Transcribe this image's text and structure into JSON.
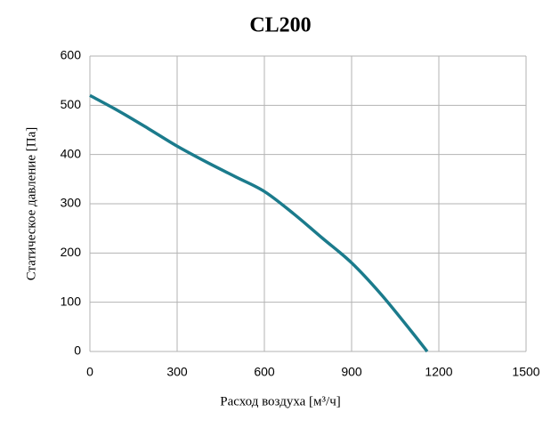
{
  "chart_data": {
    "type": "line",
    "title": "CL200",
    "x_label": "Расход воздуха [м³/ч]",
    "y_label": "Статическое давление [Па]",
    "x": [
      0,
      100,
      200,
      300,
      400,
      500,
      600,
      700,
      800,
      900,
      1000,
      1100,
      1160
    ],
    "series": [
      {
        "name": "CL200",
        "color": "#1b7b8c",
        "values": [
          520,
          488,
          453,
          417,
          385,
          355,
          325,
          280,
          230,
          180,
          117,
          45,
          0
        ]
      }
    ],
    "xlim": [
      0,
      1500
    ],
    "xticks": [
      0,
      300,
      600,
      900,
      1200,
      1500
    ],
    "ylim": [
      0,
      600
    ],
    "yticks": [
      0,
      100,
      200,
      300,
      400,
      500,
      600
    ],
    "grid": true,
    "legend": false
  }
}
